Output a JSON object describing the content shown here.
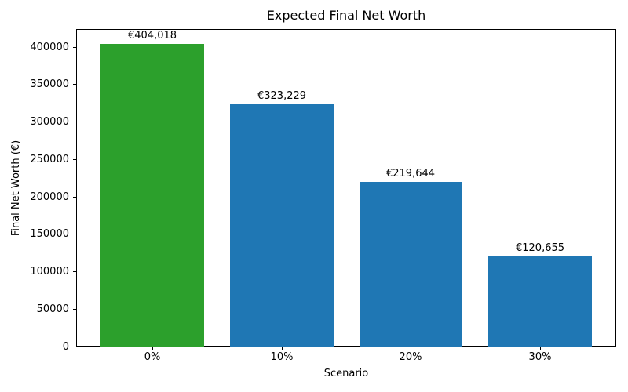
{
  "chart_data": {
    "type": "bar",
    "title": "Expected Final Net Worth",
    "xlabel": "Scenario",
    "ylabel": "Final Net Worth (€)",
    "categories": [
      "0%",
      "10%",
      "20%",
      "30%"
    ],
    "values": [
      404018,
      323229,
      219644,
      120655
    ],
    "bar_labels": [
      "€404,018",
      "€323,229",
      "€219,644",
      "€120,655"
    ],
    "bar_colors": [
      "#2ca02c",
      "#1f77b4",
      "#1f77b4",
      "#1f77b4"
    ],
    "yticks": [
      0,
      50000,
      100000,
      150000,
      200000,
      250000,
      300000,
      350000,
      400000
    ],
    "ylim": [
      0,
      424219
    ],
    "grid": false,
    "legend_position": "none"
  }
}
